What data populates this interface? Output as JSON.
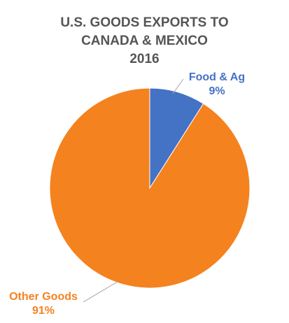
{
  "chart_data": {
    "type": "pie",
    "title_lines": [
      "U.S. GOODS EXPORTS TO",
      "CANADA & MEXICO",
      "2016"
    ],
    "slices": [
      {
        "name": "Food & Ag",
        "value": 9,
        "label": "9%",
        "color": "#4472C4"
      },
      {
        "name": "Other Goods",
        "value": 91,
        "label": "91%",
        "color": "#F4821F"
      }
    ],
    "legend": "none"
  }
}
